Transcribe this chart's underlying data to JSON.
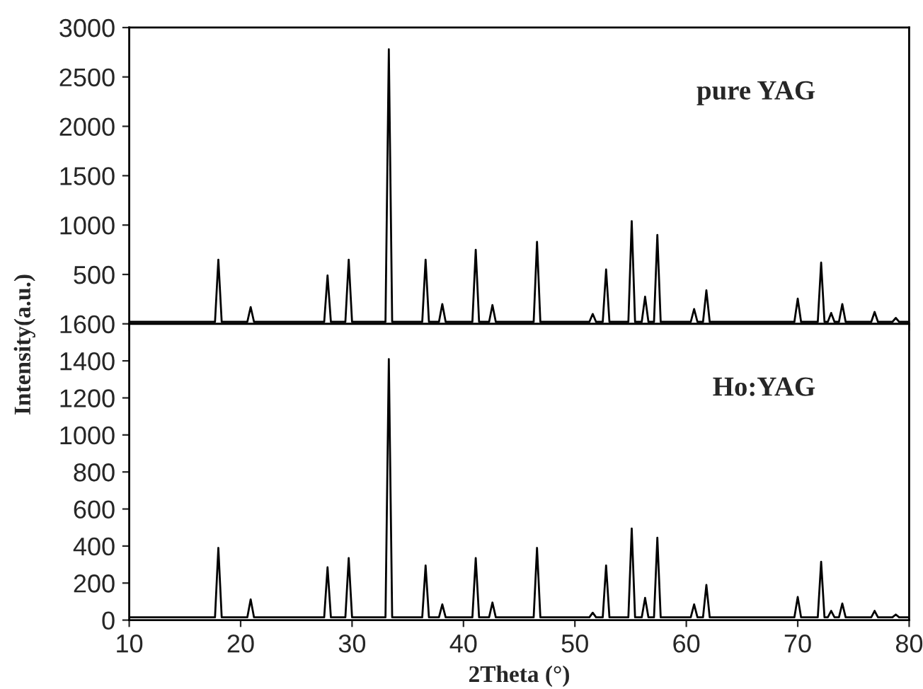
{
  "chart_data": [
    {
      "type": "line",
      "annotations": [
        "pure YAG"
      ],
      "xlim": [
        10,
        80
      ],
      "xticks": [
        10,
        20,
        30,
        40,
        50,
        60,
        70,
        80
      ],
      "ylim": [
        0,
        3000
      ],
      "yticks": [
        500,
        1000,
        1500,
        2000,
        2500,
        3000
      ],
      "tick_labels": "y",
      "grid": false,
      "legend": false,
      "series": [
        {
          "color": "#000000",
          "x": [
            10,
            17.7,
            18.0,
            18.3,
            20.6,
            20.9,
            21.2,
            27.5,
            27.8,
            28.1,
            29.4,
            29.7,
            30.0,
            33.0,
            33.3,
            33.6,
            36.3,
            36.6,
            36.9,
            37.8,
            38.1,
            38.4,
            40.8,
            41.1,
            41.4,
            42.3,
            42.6,
            42.9,
            46.3,
            46.6,
            46.9,
            51.3,
            51.6,
            51.9,
            52.5,
            52.8,
            53.1,
            54.8,
            55.1,
            55.4,
            56.0,
            56.3,
            56.6,
            57.1,
            57.4,
            57.7,
            60.4,
            60.7,
            61.0,
            61.5,
            61.8,
            62.1,
            69.7,
            70.0,
            70.3,
            71.8,
            72.1,
            72.4,
            72.7,
            73.0,
            73.3,
            73.7,
            74.0,
            74.3,
            76.6,
            76.9,
            77.2,
            78.5,
            78.8,
            79.1,
            80
          ],
          "values": [
            20,
            20,
            650,
            20,
            20,
            170,
            20,
            20,
            490,
            20,
            20,
            650,
            20,
            20,
            2780,
            20,
            20,
            650,
            20,
            20,
            200,
            20,
            20,
            750,
            20,
            20,
            190,
            20,
            20,
            830,
            20,
            20,
            100,
            20,
            20,
            550,
            20,
            20,
            1040,
            20,
            20,
            275,
            20,
            20,
            900,
            20,
            20,
            150,
            20,
            20,
            340,
            20,
            20,
            255,
            20,
            20,
            620,
            20,
            20,
            110,
            20,
            20,
            200,
            20,
            20,
            120,
            20,
            20,
            60,
            20,
            20
          ]
        }
      ]
    },
    {
      "type": "line",
      "annotations": [
        "Ho:YAG"
      ],
      "xlabel": "2Theta (°)",
      "ylabel": "Intensity(a.u.)",
      "xlim": [
        10,
        80
      ],
      "xticks": [
        10,
        20,
        30,
        40,
        50,
        60,
        70,
        80
      ],
      "ylim": [
        0,
        1600
      ],
      "yticks": [
        0,
        200,
        400,
        600,
        800,
        1000,
        1200,
        1400,
        1600
      ],
      "grid": false,
      "legend": false,
      "series": [
        {
          "color": "#000000",
          "x": [
            10,
            17.7,
            18.0,
            18.3,
            20.6,
            20.9,
            21.2,
            27.5,
            27.8,
            28.1,
            29.4,
            29.7,
            30.0,
            33.0,
            33.3,
            33.6,
            36.3,
            36.6,
            36.9,
            37.8,
            38.1,
            38.4,
            40.8,
            41.1,
            41.4,
            42.3,
            42.6,
            42.9,
            46.3,
            46.6,
            46.9,
            51.3,
            51.6,
            51.9,
            52.5,
            52.8,
            53.1,
            54.8,
            55.1,
            55.4,
            56.0,
            56.3,
            56.6,
            57.1,
            57.4,
            57.7,
            60.4,
            60.7,
            61.0,
            61.5,
            61.8,
            62.1,
            69.7,
            70.0,
            70.3,
            71.8,
            72.1,
            72.4,
            72.7,
            73.0,
            73.3,
            73.7,
            74.0,
            74.3,
            76.6,
            76.9,
            77.2,
            78.5,
            78.8,
            79.1,
            80
          ],
          "values": [
            15,
            15,
            390,
            15,
            15,
            112,
            15,
            15,
            285,
            15,
            15,
            335,
            15,
            15,
            1410,
            15,
            15,
            295,
            15,
            15,
            85,
            15,
            15,
            335,
            15,
            15,
            95,
            15,
            15,
            390,
            15,
            15,
            40,
            15,
            15,
            295,
            15,
            15,
            495,
            15,
            15,
            120,
            15,
            15,
            445,
            15,
            15,
            85,
            15,
            15,
            190,
            15,
            15,
            125,
            15,
            15,
            315,
            15,
            15,
            50,
            15,
            15,
            90,
            15,
            15,
            50,
            15,
            15,
            30,
            15,
            15
          ]
        }
      ]
    }
  ]
}
